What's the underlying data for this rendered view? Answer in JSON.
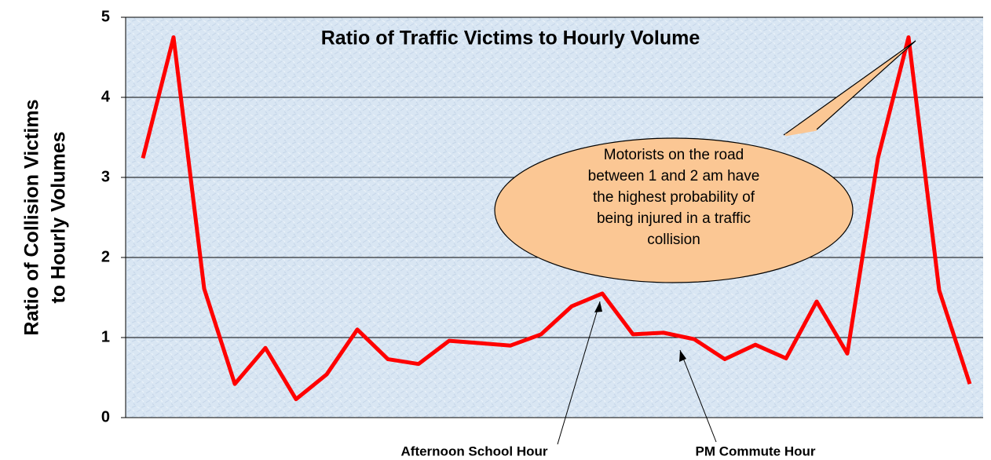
{
  "chart_data": {
    "type": "line",
    "title": "Ratio of Traffic Victims to Hourly Volume",
    "ylabel": [
      "Ratio of Collision Victims",
      "to Hourly Volumes"
    ],
    "categories": [
      null,
      null,
      null,
      null,
      null,
      null,
      null,
      null,
      null,
      null,
      null,
      null,
      null,
      null,
      null,
      null,
      null,
      null,
      null,
      null,
      null,
      null,
      null,
      null,
      null,
      null,
      null,
      null
    ],
    "series": [
      {
        "name": null,
        "color": "#ff0000",
        "values": [
          3.24,
          4.75,
          1.61,
          0.42,
          0.87,
          0.23,
          0.54,
          1.1,
          0.73,
          0.67,
          0.96,
          0.93,
          0.9,
          1.04,
          1.39,
          1.55,
          1.04,
          1.06,
          0.98,
          0.73,
          0.91,
          0.74,
          1.45,
          0.8,
          3.24,
          4.75,
          1.59,
          0.42
        ]
      }
    ],
    "ylim": [
      0,
      5
    ],
    "yticks": [
      0,
      1,
      2,
      3,
      4,
      5
    ],
    "grid": true,
    "callout": [
      "Motorists on the road",
      "between 1 and 2 am have",
      "the highest probability of",
      "being injured in a traffic",
      "collision"
    ],
    "annotations": [
      "Afternoon School Hour",
      "PM Commute Hour"
    ]
  }
}
